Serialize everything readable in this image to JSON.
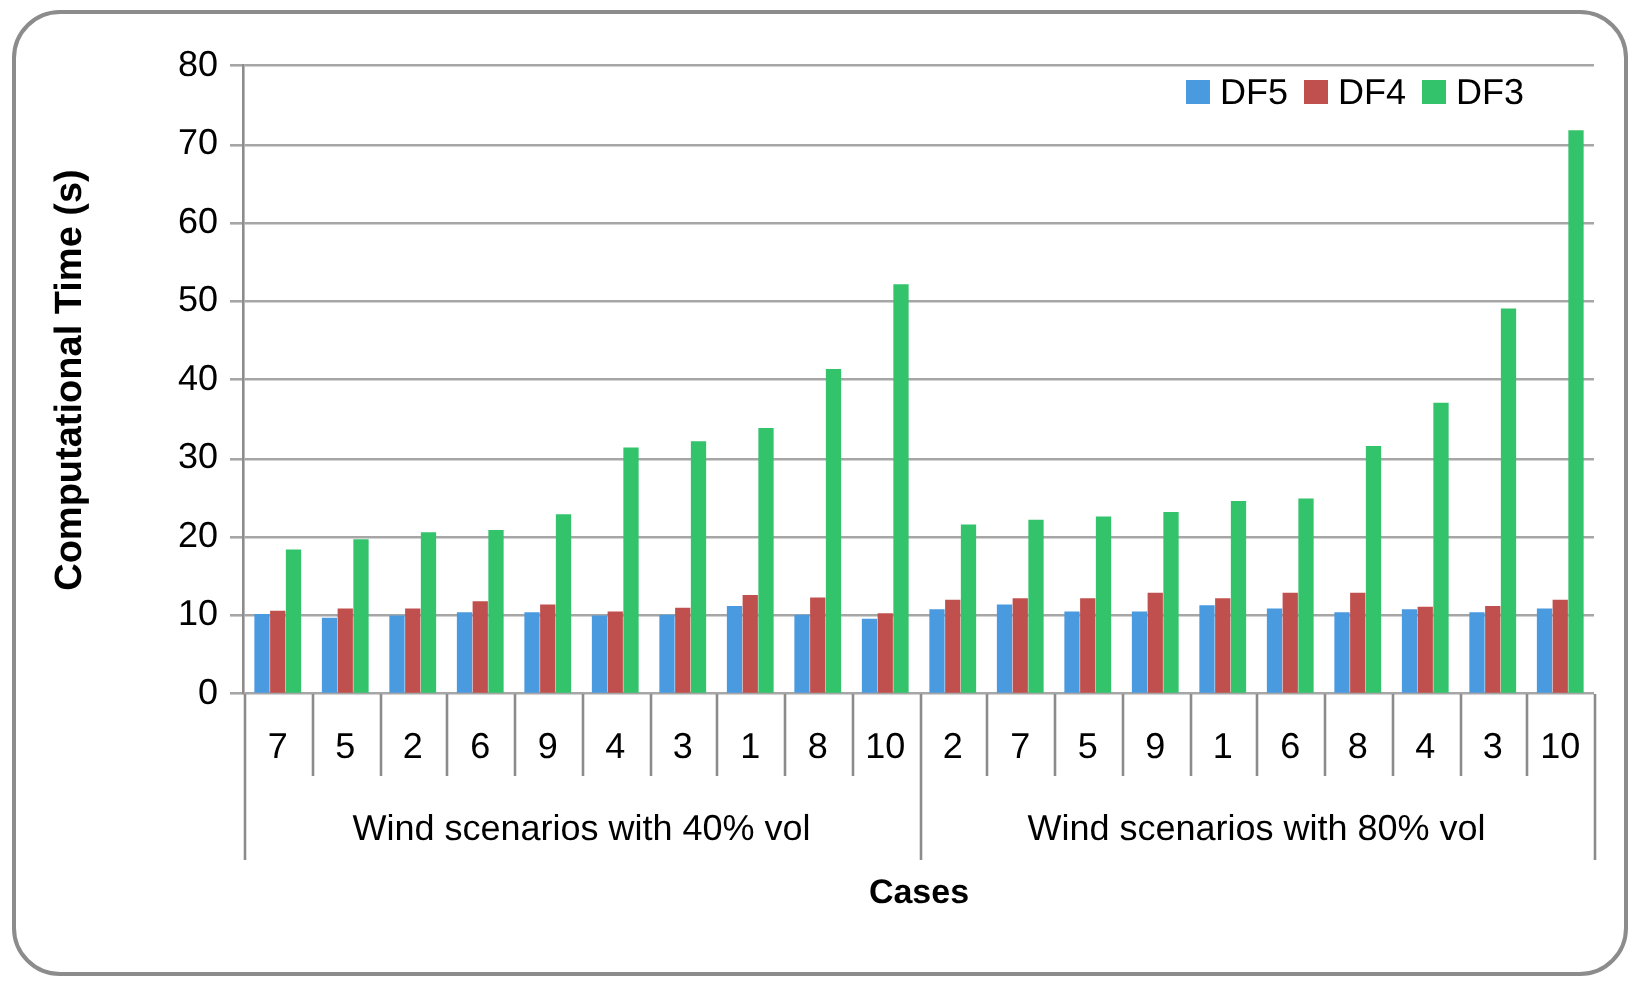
{
  "chart_data": {
    "type": "bar",
    "xlabel": "Cases",
    "ylabel": "Computational Time (s)",
    "categories": [
      "7",
      "5",
      "2",
      "6",
      "9",
      "4",
      "3",
      "1",
      "8",
      "10",
      "2",
      "7",
      "5",
      "9",
      "1",
      "6",
      "8",
      "4",
      "3",
      "10"
    ],
    "series": [
      {
        "name": "DF5",
        "color": "#4a9ae0",
        "values": [
          10.2,
          9.7,
          10.0,
          10.4,
          10.4,
          10.0,
          10.1,
          11.2,
          10.1,
          9.6,
          10.8,
          11.4,
          10.5,
          10.5,
          11.3,
          10.9,
          10.4,
          10.8,
          10.4,
          10.9
        ]
      },
      {
        "name": "DF4",
        "color": "#c0504d",
        "values": [
          10.6,
          10.9,
          10.9,
          11.8,
          11.4,
          10.5,
          11.0,
          12.6,
          12.3,
          10.3,
          12.0,
          12.2,
          12.2,
          12.9,
          12.2,
          12.9,
          12.9,
          11.1,
          11.2,
          12.0
        ]
      },
      {
        "name": "DF3",
        "color": "#33c36b",
        "values": [
          18.4,
          19.7,
          20.6,
          20.9,
          22.9,
          31.4,
          32.2,
          33.9,
          41.4,
          52.2,
          21.6,
          22.2,
          22.6,
          23.2,
          24.6,
          24.9,
          31.6,
          37.1,
          49.1,
          71.8
        ]
      }
    ],
    "ylim": [
      0,
      80
    ],
    "yticks": [
      0,
      10,
      20,
      30,
      40,
      50,
      60,
      70,
      80
    ],
    "grid": "y",
    "legend": "top right",
    "annotations": [
      "Wind scenarios with 40% vol",
      "Wind scenarios with 80% vol"
    ]
  }
}
